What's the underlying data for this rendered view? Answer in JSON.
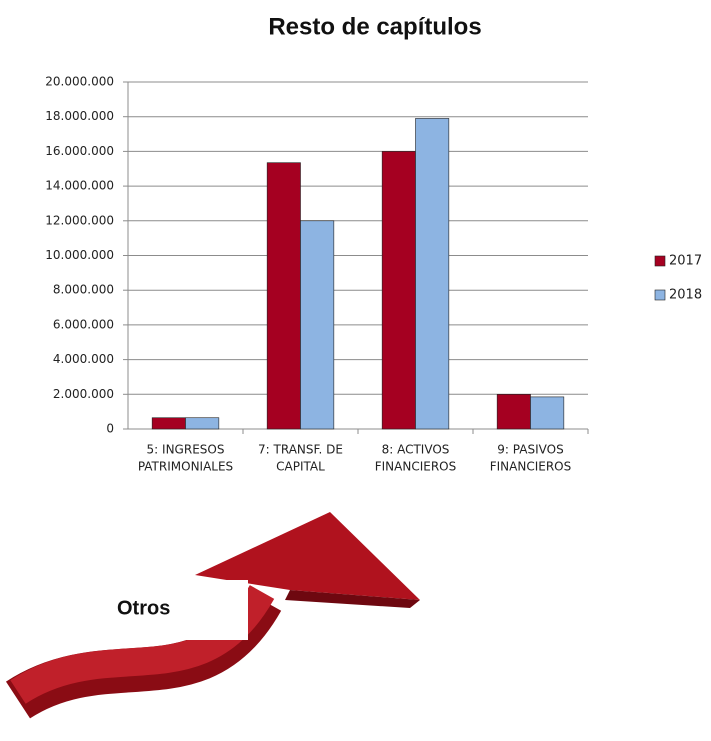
{
  "chart_data": {
    "type": "bar",
    "title": "Resto de capítulos",
    "categories": [
      [
        "5: INGRESOS",
        "PATRIMONIALES"
      ],
      [
        "7: TRANSF. DE",
        "CAPITAL"
      ],
      [
        "8: ACTIVOS",
        "FINANCIEROS"
      ],
      [
        "9: PASIVOS",
        "FINANCIEROS"
      ]
    ],
    "series": [
      {
        "name": "2017",
        "color": "#a50021",
        "values": [
          650000,
          15350000,
          16000000,
          2000000
        ]
      },
      {
        "name": "2018",
        "color": "#8db4e2",
        "values": [
          650000,
          12000000,
          17900000,
          1850000
        ]
      }
    ],
    "ylim": [
      0,
      20000000
    ],
    "yticks": [
      0,
      {
        "value": 2000000,
        "label": "2.000.000"
      },
      {
        "value": 4000000,
        "label": "4.000.000"
      },
      {
        "value": 6000000,
        "label": "6.000.000"
      },
      {
        "value": 8000000,
        "label": "8.000.000"
      },
      {
        "value": 10000000,
        "label": "10.000.000"
      },
      {
        "value": 12000000,
        "label": "12.000.000"
      },
      {
        "value": 14000000,
        "label": "14.000.000"
      },
      {
        "value": 16000000,
        "label": "16.000.000"
      },
      {
        "value": 18000000,
        "label": "18.000.000"
      },
      {
        "value": 20000000,
        "label": "20.000.000"
      }
    ],
    "grid": true,
    "legend": "right",
    "annotation": "Otros"
  }
}
